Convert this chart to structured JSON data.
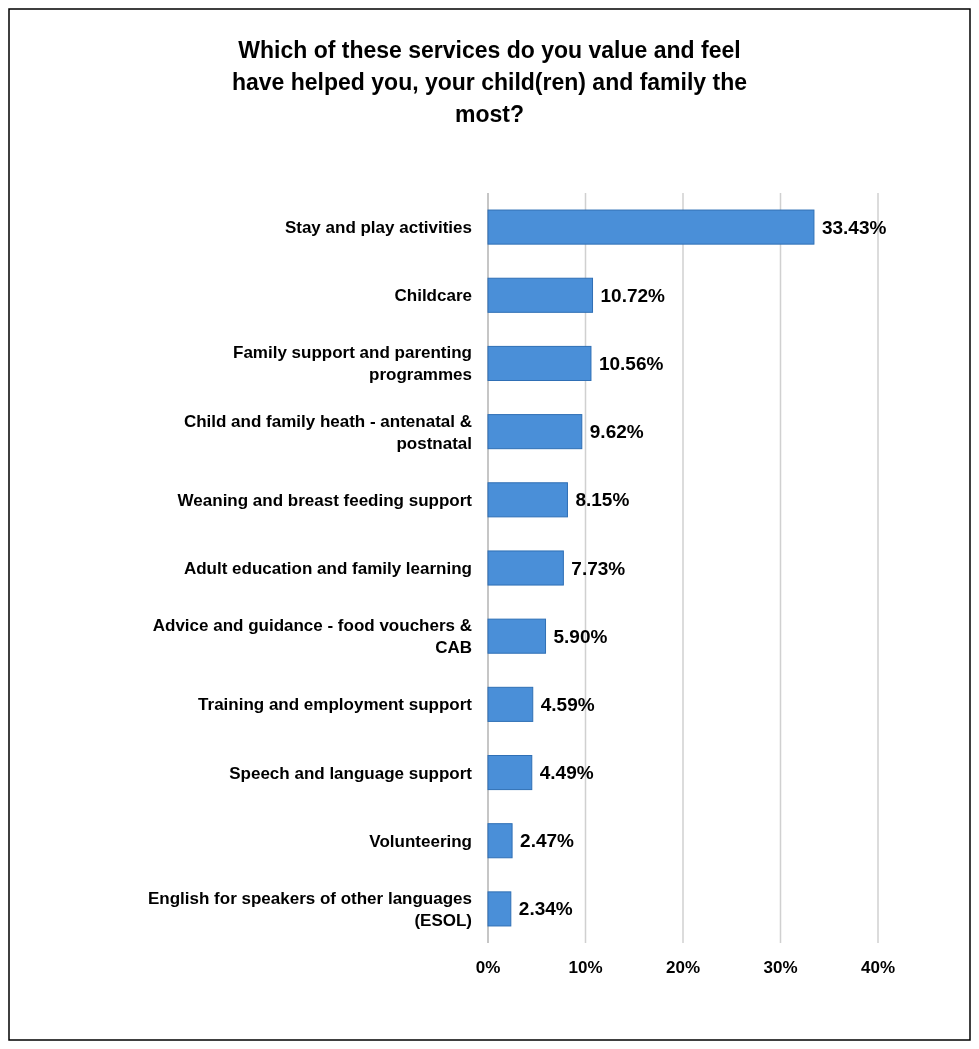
{
  "chart_data": {
    "type": "bar",
    "orientation": "horizontal",
    "title": "Which of these services do you value and feel have helped you, your child(ren) and family the most?",
    "categories": [
      "Stay and play activities",
      "Childcare",
      "Family support and parenting programmes",
      "Child and family heath - antenatal & postnatal",
      "Weaning and breast feeding support",
      "Adult education and family learning",
      "Advice and guidance - food vouchers & CAB",
      "Training and employment support",
      "Speech and language support",
      "Volunteering",
      "English for speakers of other languages (ESOL)"
    ],
    "values": [
      33.43,
      10.72,
      10.56,
      9.62,
      8.15,
      7.73,
      5.9,
      4.59,
      4.49,
      2.47,
      2.34
    ],
    "value_labels": [
      "33.43%",
      "10.72%",
      "10.56%",
      "9.62%",
      "8.15%",
      "7.73%",
      "5.90%",
      "4.59%",
      "4.49%",
      "2.47%",
      "2.34%"
    ],
    "color": "#4a8fd8",
    "xlim": [
      0,
      40
    ],
    "xticks": [
      {
        "value": 0,
        "label": "0%"
      },
      {
        "value": 10,
        "label": "10%"
      },
      {
        "value": 20,
        "label": "20%"
      },
      {
        "value": 30,
        "label": "30%"
      },
      {
        "value": 40,
        "label": "40%"
      }
    ],
    "grid": "x"
  }
}
